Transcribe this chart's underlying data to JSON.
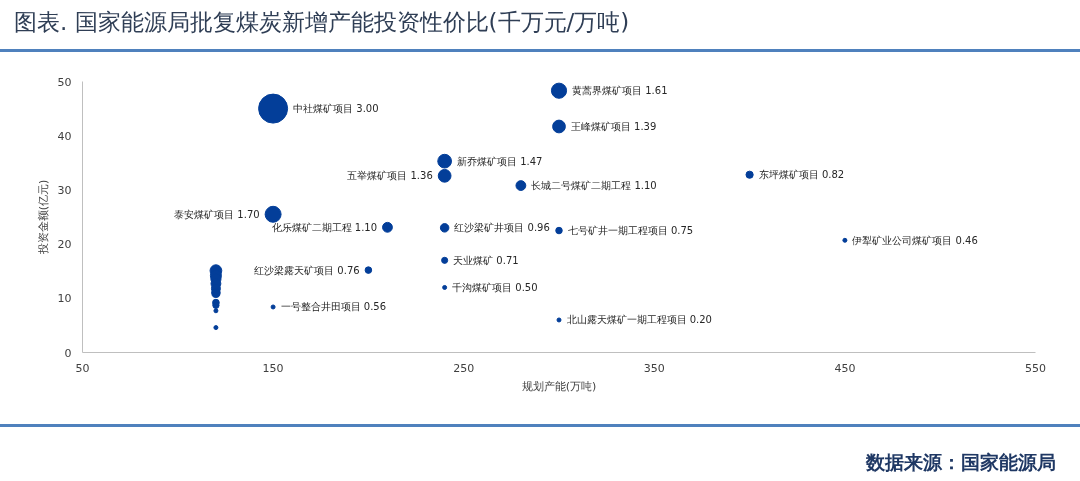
{
  "chart_data": {
    "type": "bubble",
    "title": "图表. 国家能源局批复煤炭新增产能投资性价比(千万元/万吨)",
    "xlabel": "规划产能(万吨)",
    "ylabel": "投资金额(亿元)",
    "series": [
      {
        "color": "#033e99",
        "x": [
          300,
          150,
          300,
          240,
          400,
          240,
          280,
          150,
          210,
          240,
          300,
          240,
          200,
          120,
          120,
          120,
          120,
          120,
          120,
          120,
          120,
          120
        ],
        "values": [
          48.3,
          45.0,
          41.7,
          35.3,
          32.8,
          32.6,
          30.8,
          25.5,
          23.1,
          23.0,
          22.5,
          17.0,
          15.2,
          15.1,
          14.2,
          13.6,
          12.7,
          11.8,
          11.1,
          10.9,
          9.2,
          8.7
        ],
        "sizes": [
          0.29,
          1,
          0.21,
          0.24,
          0.075,
          0.21,
          0.13,
          0.32,
          0.13,
          0.1,
          0.063,
          0.056,
          0.064,
          0.18,
          0.16,
          0.14,
          0.13,
          0.11,
          0.095,
          0.092,
          0.066,
          0.058
        ]
      },
      {
        "type": "scatter",
        "color": "#033e99",
        "x": [
          450,
          240,
          150,
          300,
          120,
          120
        ],
        "values": [
          20.7,
          12.0,
          8.4,
          6.0,
          7.7,
          4.6
        ]
      }
    ],
    "marker": "circle",
    "xlim": [
      50,
      550
    ],
    "xticks": [
      50,
      150,
      250,
      350,
      450,
      550
    ],
    "ylim": [
      0,
      50
    ],
    "yticks": [
      0,
      10,
      20,
      30,
      40,
      50
    ],
    "annotations": [
      {
        "text": "黄蒿界煤矿项目 1.61",
        "x": 300,
        "y": 48.3
      },
      {
        "text": "中社煤矿项目 3.00",
        "x": 150,
        "y": 45.0
      },
      {
        "text": "王峰煤矿项目 1.39",
        "x": 300,
        "y": 41.7
      },
      {
        "text": "新乔煤矿项目 1.47",
        "x": 240,
        "y": 35.3
      },
      {
        "text": "东坪煤矿项目 0.82",
        "x": 400,
        "y": 32.8
      },
      {
        "text": "五举煤矿项目 1.36",
        "x": 240,
        "y": 32.6
      },
      {
        "text": "长城二号煤矿二期工程 1.10",
        "x": 280,
        "y": 30.8
      },
      {
        "text": "泰安煤矿项目 1.70",
        "x": 150,
        "y": 25.5
      },
      {
        "text": "化乐煤矿二期工程 1.10",
        "x": 210,
        "y": 23.1
      },
      {
        "text": "红沙梁矿井项目 0.96",
        "x": 240,
        "y": 23.0
      },
      {
        "text": "七号矿井一期工程项目 0.75",
        "x": 300,
        "y": 22.5
      },
      {
        "text": "伊犁矿业公司煤矿项目 0.46",
        "x": 450,
        "y": 20.7
      },
      {
        "text": "天业煤矿 0.71",
        "x": 240,
        "y": 17.0
      },
      {
        "text": "红沙梁露天矿项目 0.76",
        "x": 200,
        "y": 15.2
      },
      {
        "text": "千沟煤矿项目 0.50",
        "x": 240,
        "y": 12.0
      },
      {
        "text": "一号整合井田项目 0.56",
        "x": 150,
        "y": 8.4
      },
      {
        "text": "北山露天煤矿一期工程项目 0.20",
        "x": 300,
        "y": 6.0
      },
      "数据来源：国家能源局"
    ]
  }
}
